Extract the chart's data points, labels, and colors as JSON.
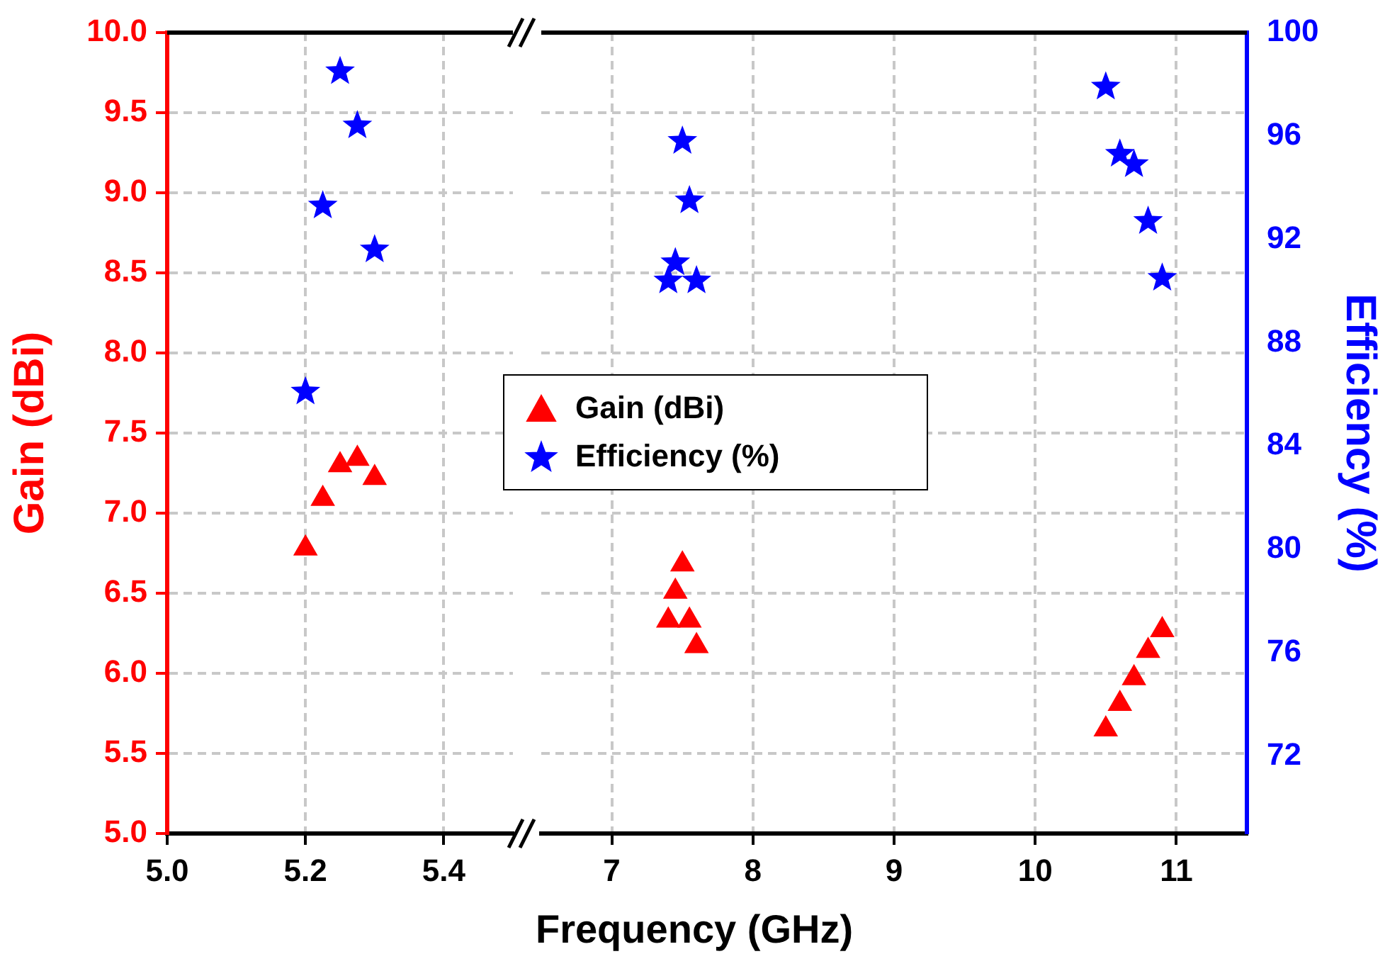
{
  "chart_data": [
    {
      "type": "scatter",
      "ylabel": "Gain (dBi)",
      "xlim": [
        5.0,
        5.5
      ],
      "xticks": [
        {
          "value": 5.0,
          "label": "5.0"
        },
        {
          "value": 5.2,
          "label": "5.2"
        },
        {
          "value": 5.4,
          "label": "5.4"
        }
      ],
      "ylim": [
        5,
        10
      ],
      "yticks": [
        {
          "value": 5,
          "label": "5.0"
        },
        {
          "value": 5.5,
          "label": "5.5"
        },
        {
          "value": 6,
          "label": "6.0"
        },
        {
          "value": 6.5,
          "label": "6.5"
        },
        {
          "value": 7,
          "label": "7.0"
        },
        {
          "value": 7.5,
          "label": "7.5"
        },
        {
          "value": 8,
          "label": "8.0"
        },
        {
          "value": 8.5,
          "label": "8.5"
        },
        {
          "value": 9,
          "label": "9.0"
        },
        {
          "value": 9.5,
          "label": "9.5"
        },
        {
          "value": 10,
          "label": "10.0"
        }
      ],
      "y2lim": [
        69,
        100
      ],
      "grid": true,
      "legend": false,
      "tick_labels": [
        "x",
        "y"
      ],
      "series": [
        {
          "color": "#ff0000",
          "marker": "triangle",
          "x": [
            5.2,
            5.225,
            5.25,
            5.275,
            5.3
          ],
          "values": [
            6.78,
            7.09,
            7.3,
            7.34,
            7.22
          ]
        },
        {
          "color": "#0000ff",
          "marker": "star",
          "axis": "y2",
          "x": [
            5.2,
            5.225,
            5.25,
            5.275,
            5.3
          ],
          "values": [
            86.1,
            93.3,
            98.5,
            96.4,
            91.6
          ]
        }
      ]
    },
    {
      "type": "scatter",
      "xlabel": "Frequency (GHz)",
      "y2label": "Efficiency (%)",
      "xlim": [
        6.5,
        11.5
      ],
      "xticks": [
        7,
        8,
        9,
        10,
        11
      ],
      "ylim": [
        5,
        10
      ],
      "y2lim": [
        69,
        100
      ],
      "y2ticks": [
        72,
        76,
        80,
        84,
        88,
        92,
        96,
        100
      ],
      "grid": true,
      "legend": "center left",
      "tick_labels": [
        "x",
        "y2"
      ],
      "series": [
        {
          "name": "Gain (dBi)",
          "color": "#ff0000",
          "marker": "triangle",
          "x": [
            7.4,
            7.45,
            7.5,
            7.55,
            7.6,
            10.5,
            10.6,
            10.7,
            10.8,
            10.9
          ],
          "values": [
            6.33,
            6.51,
            6.68,
            6.33,
            6.17,
            5.65,
            5.81,
            5.97,
            6.14,
            6.27
          ]
        },
        {
          "name": "Efficiency (%)",
          "color": "#0000ff",
          "marker": "star",
          "axis": "y2",
          "x": [
            7.4,
            7.45,
            7.5,
            7.55,
            7.6,
            10.5,
            10.6,
            10.7,
            10.8,
            10.9
          ],
          "values": [
            90.4,
            91.1,
            95.8,
            93.5,
            90.4,
            97.9,
            95.3,
            94.9,
            92.7,
            90.5
          ]
        }
      ]
    }
  ]
}
